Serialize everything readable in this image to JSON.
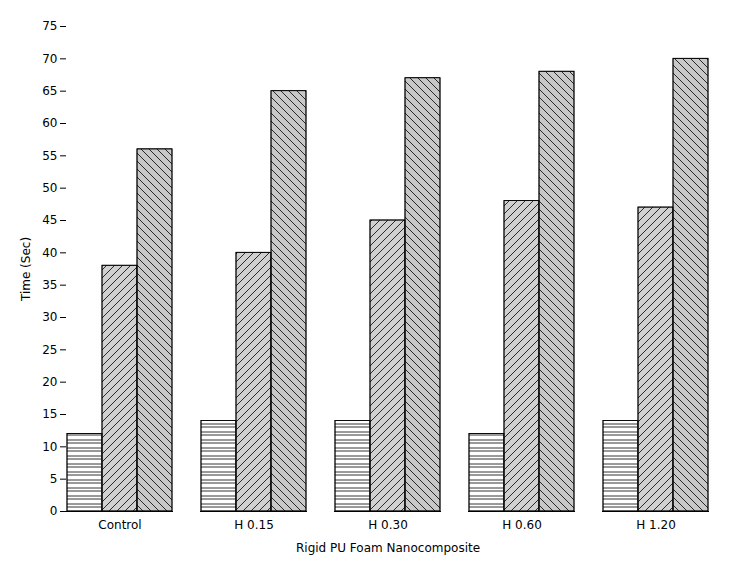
{
  "chart_data": {
    "type": "bar",
    "categories": [
      "Control",
      "H 0.15",
      "H 0.30",
      "H 0.60",
      "H 1.20"
    ],
    "series": [
      {
        "color": "#ffffff",
        "values": [
          12,
          14,
          14,
          12,
          14
        ]
      },
      {
        "color": "#d0d0d0",
        "values": [
          38,
          40,
          45,
          48,
          47
        ]
      },
      {
        "color": "#c8c8c8",
        "values": [
          56,
          65,
          67,
          68,
          70
        ]
      }
    ],
    "xlabel": "Rigid PU Foam Nanocomposite",
    "ylabel": "Time (Sec)",
    "ylim": [
      0,
      75
    ],
    "yticks": [
      0,
      5,
      10,
      15,
      20,
      25,
      30,
      35,
      40,
      45,
      50,
      55,
      60,
      65,
      70,
      75
    ],
    "grid": false
  }
}
